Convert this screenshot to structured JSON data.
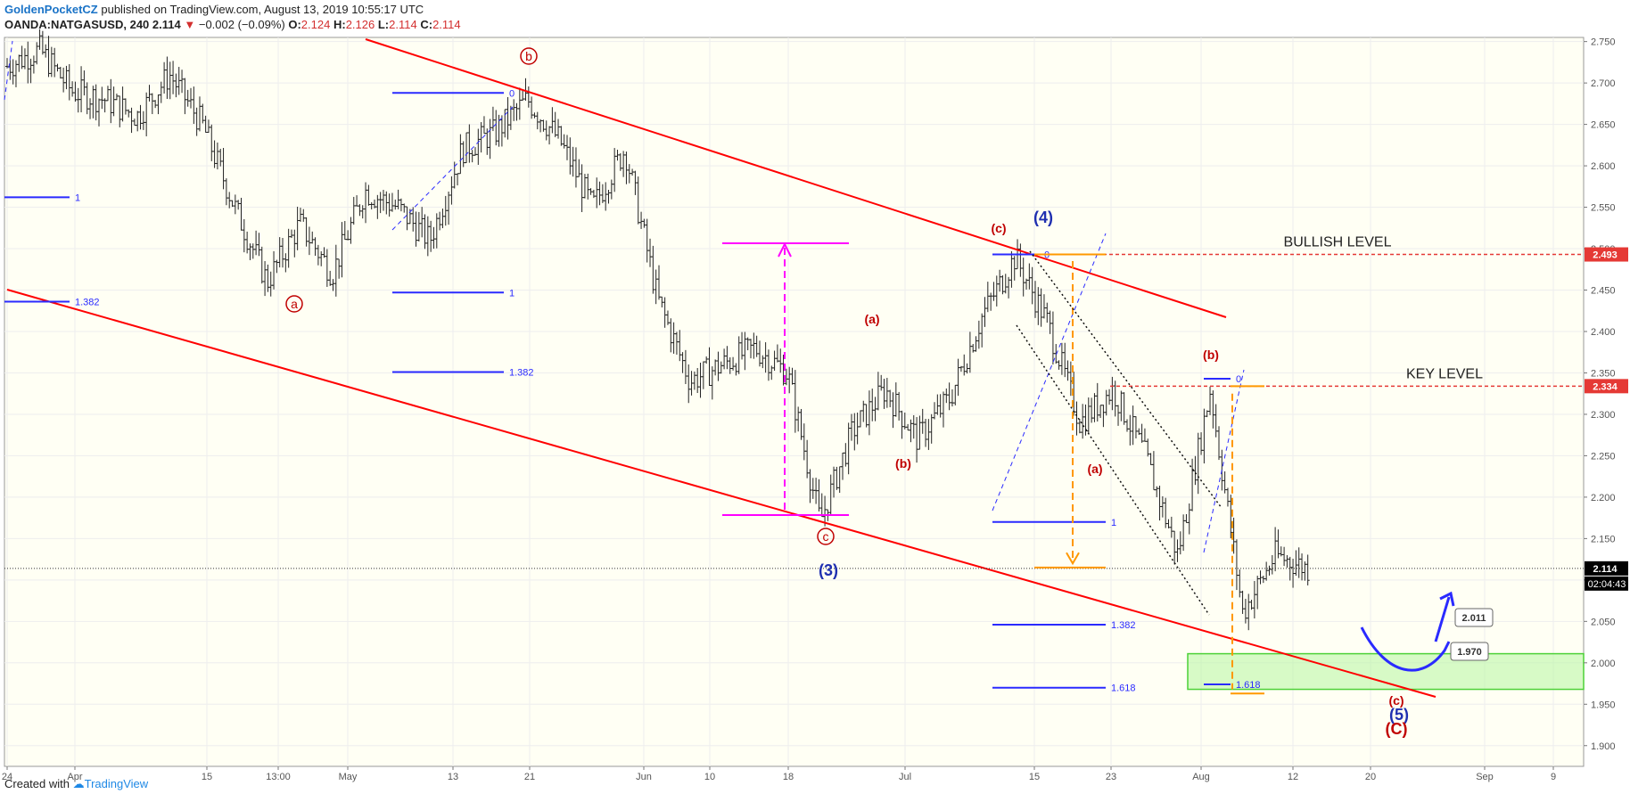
{
  "header": {
    "author": "GoldenPocketCZ",
    "published": " published on TradingView.com, August 13, 2019 10:55:17 UTC",
    "symbol": "OANDA:NATGASUSD, 240",
    "last": "2.114",
    "change": "−0.002 (−0.09%)",
    "o_label": "O:",
    "o": "2.124",
    "h_label": "H:",
    "h": "2.126",
    "l_label": "L:",
    "l": "2.114",
    "c_label": "C:",
    "c": "2.114"
  },
  "footer": {
    "created": "Created with",
    "brand": "TradingView"
  },
  "colors": {
    "background": "#fffff4",
    "channel": "#ff0000",
    "fib": "#2a2aff",
    "wave_red": "#c00000",
    "wave_blue": "#1f2fb0",
    "magenta": "#ff00ff",
    "orange": "#ff9800",
    "green_zone": "#b6f5a0",
    "grid": "#eeeeee"
  },
  "chart_data": {
    "type": "line",
    "title": "",
    "ylim": [
      1.875,
      2.755
    ],
    "y_ticks": [
      "2.750",
      "2.700",
      "2.650",
      "2.600",
      "2.550",
      "2.500",
      "2.450",
      "2.400",
      "2.350",
      "2.300",
      "2.250",
      "2.200",
      "2.150",
      "2.100",
      "2.050",
      "2.000",
      "1.950",
      "1.900"
    ],
    "x_ticks": [
      "24",
      "Apr",
      "15",
      "13:00",
      "May",
      "13",
      "21",
      "Jun",
      "10",
      "18",
      "Jul",
      "15",
      "23",
      "Aug",
      "12",
      "20",
      "Sep",
      "9"
    ],
    "price_tags": [
      {
        "label": "2.493",
        "value": 2.493,
        "color": "#e53935"
      },
      {
        "label": "2.334",
        "value": 2.334,
        "color": "#e53935"
      },
      {
        "label": "2.114",
        "value": 2.114,
        "color": "#000000"
      }
    ],
    "countdown": "02:04:43",
    "horizontal_levels": [
      {
        "name": "BULLISH LEVEL",
        "value": 2.493
      },
      {
        "name": "KEY LEVEL",
        "value": 2.334
      }
    ],
    "target_callouts": [
      "2.011",
      "1.970"
    ],
    "support_zone": [
      1.968,
      2.011
    ],
    "fib_labels": [
      "1",
      "1.382",
      "1",
      "1.382",
      "0",
      "1",
      "1.382",
      "1.618",
      "0",
      "1.618",
      "0"
    ],
    "wave_labels": [
      "a",
      "b",
      "c",
      "(3)",
      "(a)",
      "(b)",
      "(c)",
      "(4)",
      "(a)",
      "(b)",
      "(c)",
      "(5)",
      "(C)"
    ],
    "series": [
      {
        "x": [
          "Mar 24",
          "Mar 28",
          "Apr 1",
          "Apr 5",
          "Apr 9",
          "Apr 12",
          "Apr 15",
          "Apr 18",
          "Apr 22",
          "Apr 25",
          "Apr 29",
          "May 2",
          "May 6",
          "May 9",
          "May 13",
          "May 16",
          "May 20",
          "May 23",
          "May 27",
          "May 30",
          "Jun 3",
          "Jun 6",
          "Jun 10",
          "Jun 13",
          "Jun 17",
          "Jun 20",
          "Jun 24",
          "Jun 27",
          "Jul 1",
          "Jul 4",
          "Jul 8",
          "Jul 11",
          "Jul 15",
          "Jul 18",
          "Jul 22",
          "Jul 25",
          "Jul 29",
          "Aug 1",
          "Aug 5",
          "Aug 8",
          "Aug 12"
        ],
        "values": [
          2.72,
          2.74,
          2.69,
          2.68,
          2.66,
          2.71,
          2.65,
          2.55,
          2.46,
          2.53,
          2.47,
          2.57,
          2.55,
          2.51,
          2.62,
          2.64,
          2.68,
          2.63,
          2.55,
          2.62,
          2.44,
          2.34,
          2.36,
          2.38,
          2.35,
          2.17,
          2.28,
          2.33,
          2.27,
          2.32,
          2.42,
          2.49,
          2.41,
          2.29,
          2.33,
          2.25,
          2.13,
          2.33,
          2.06,
          2.13,
          2.114
        ]
      }
    ]
  }
}
